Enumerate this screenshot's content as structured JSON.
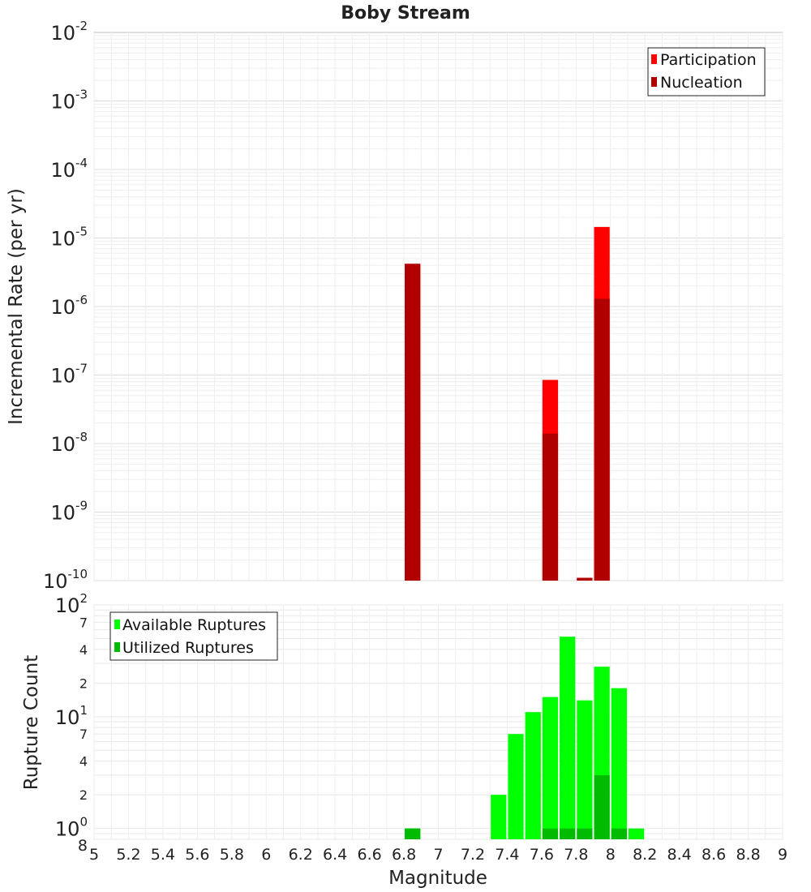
{
  "chart_data": [
    {
      "type": "bar",
      "title": "Boby Stream",
      "ylabel": "Incremental Rate (per yr)",
      "yscale": "log",
      "ylim": [
        1e-10,
        0.01
      ],
      "xlim": [
        5,
        9
      ],
      "grid": true,
      "legend_position": "top-right",
      "y_tick_labels": [
        {
          "base": "10",
          "exp": "-2"
        },
        {
          "base": "10",
          "exp": "-3"
        },
        {
          "base": "10",
          "exp": "-4"
        },
        {
          "base": "10",
          "exp": "-5"
        },
        {
          "base": "10",
          "exp": "-6"
        },
        {
          "base": "10",
          "exp": "-7"
        },
        {
          "base": "10",
          "exp": "-8"
        },
        {
          "base": "10",
          "exp": "-9"
        },
        {
          "base": "10",
          "exp": "-10"
        }
      ],
      "series": [
        {
          "name": "Participation",
          "color": "#ff0000",
          "x": [
            6.85,
            7.65,
            7.85,
            7.95
          ],
          "values": [
            4.2e-06,
            8.5e-08,
            1.1e-10,
            1.45e-05
          ]
        },
        {
          "name": "Nucleation",
          "color": "#b00000",
          "x": [
            6.85,
            7.65,
            7.85,
            7.95
          ],
          "values": [
            4.2e-06,
            1.4e-08,
            1.1e-10,
            1.3e-06
          ]
        }
      ]
    },
    {
      "type": "bar",
      "ylabel": "Rupture Count",
      "xlabel": "Magnitude",
      "yscale": "log",
      "ylim": [
        0.8,
        100
      ],
      "xlim": [
        5,
        9
      ],
      "grid": true,
      "legend_position": "top-left",
      "x_ticks": [
        "5",
        "5.2",
        "5.4",
        "5.6",
        "5.8",
        "6",
        "6.2",
        "6.4",
        "6.6",
        "6.8",
        "7",
        "7.2",
        "7.4",
        "7.6",
        "7.8",
        "8",
        "8.2",
        "8.4",
        "8.6",
        "8.8",
        "9"
      ],
      "y_major_labels": [
        {
          "base": "10",
          "exp": "2"
        },
        {
          "base": "10",
          "exp": "1"
        },
        {
          "base": "10",
          "exp": "0"
        }
      ],
      "y_minor_labels": [
        "7",
        "4",
        "2",
        "7",
        "4",
        "2",
        "8"
      ],
      "series": [
        {
          "name": "Available Ruptures",
          "color": "#00ff00",
          "x": [
            6.85,
            7.35,
            7.45,
            7.55,
            7.65,
            7.75,
            7.85,
            7.95,
            8.05,
            8.15
          ],
          "values": [
            1,
            2,
            7,
            11,
            15,
            52,
            14,
            28,
            18,
            1
          ]
        },
        {
          "name": "Utilized Ruptures",
          "color": "#00bb00",
          "x": [
            6.85,
            7.65,
            7.75,
            7.85,
            7.95,
            8.05
          ],
          "values": [
            1,
            1,
            1,
            1,
            3,
            1
          ]
        }
      ]
    }
  ]
}
